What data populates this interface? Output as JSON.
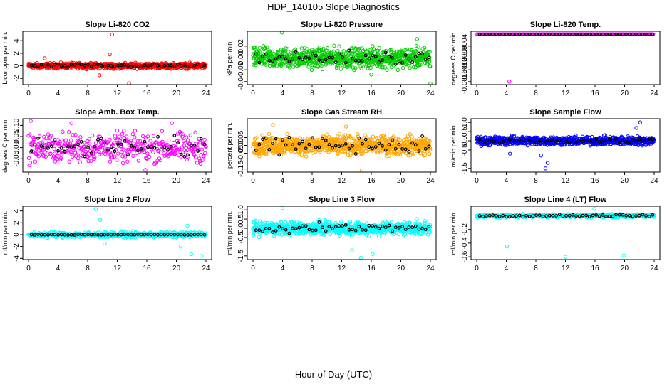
{
  "figure": {
    "title": "HDP_140105  Slope Diagnostics",
    "xlabel": "Hour of Day (UTC)"
  },
  "chart_data": [
    {
      "type": "scatter",
      "title": "Slope Li-820 CO2",
      "ylabel": "Licor ppm per min.",
      "color": "#ff0000",
      "xlim": [
        0,
        24
      ],
      "ylim": [
        -3,
        5.5
      ],
      "xticks": [
        0,
        4,
        8,
        12,
        16,
        20,
        24
      ],
      "yticks": [
        -2,
        0,
        2,
        4
      ],
      "ytick_labels": [
        "-2",
        "0",
        "2",
        "4"
      ],
      "spread": 0.35,
      "base_style": "dense",
      "outliers": [
        {
          "x": 2.2,
          "y": 1.2
        },
        {
          "x": 9.6,
          "y": -1.5
        },
        {
          "x": 11.0,
          "y": 1.8
        },
        {
          "x": 11.3,
          "y": 5.0
        },
        {
          "x": 13.6,
          "y": -2.8
        }
      ],
      "black_spread": 0.25
    },
    {
      "type": "scatter",
      "title": "Slope Li-820 Pressure",
      "ylabel": "kPa per min.",
      "color": "#00cc00",
      "xlim": [
        0,
        24
      ],
      "ylim": [
        -0.045,
        0.045
      ],
      "xticks": [
        0,
        4,
        8,
        12,
        16,
        20,
        24
      ],
      "yticks": [
        -0.04,
        -0.02,
        0.0,
        0.02
      ],
      "ytick_labels": [
        "-0.04",
        "-0.02",
        "0.00",
        "0.02"
      ],
      "spread": 0.014,
      "base_style": "dense",
      "outliers": [
        {
          "x": 3.9,
          "y": 0.043
        },
        {
          "x": 22.2,
          "y": 0.032
        },
        {
          "x": 16.0,
          "y": -0.028
        },
        {
          "x": 24.0,
          "y": -0.043
        }
      ],
      "black_spread": 0.01
    },
    {
      "type": "scatter",
      "title": "Slope Li-820 Temp.",
      "ylabel": "degrees C per min.",
      "color": "#ff00ff",
      "xlim": [
        0,
        24
      ],
      "ylim": [
        -0.0017,
        0.0001
      ],
      "xticks": [
        0,
        4,
        8,
        12,
        16,
        20,
        24
      ],
      "yticks": [
        -0.0016,
        -0.0012,
        -0.0008,
        -0.0004
      ],
      "ytick_labels": [
        "-0.0016",
        "-0.0012",
        "-0.0008",
        "-0.0004"
      ],
      "spread": 0,
      "base_style": "line",
      "line_y": 0.0,
      "outliers": [
        {
          "x": 4.4,
          "y": -0.0016
        }
      ],
      "black_spread": 0
    },
    {
      "type": "scatter",
      "title": "Slope Amb. Box Temp.",
      "ylabel": "degrees C per min.",
      "color": "#ff00ff",
      "xlim": [
        0,
        24
      ],
      "ylim": [
        -0.11,
        0.13
      ],
      "xticks": [
        0,
        4,
        8,
        12,
        16,
        20,
        24
      ],
      "yticks": [
        -0.05,
        0.0,
        0.05,
        0.1
      ],
      "ytick_labels": [
        "-0.05",
        "0.00",
        "0.05",
        "0.10"
      ],
      "spread": 0.055,
      "base_style": "sparse",
      "outliers": [
        {
          "x": 0.3,
          "y": 0.12
        },
        {
          "x": 5.8,
          "y": 0.11
        },
        {
          "x": 15.8,
          "y": -0.1
        },
        {
          "x": 19.4,
          "y": 0.11
        }
      ],
      "black_spread": 0.04
    },
    {
      "type": "scatter",
      "title": "Slope Gas Stream RH",
      "ylabel": "percent per min.",
      "color": "#ffa500",
      "xlim": [
        0,
        24
      ],
      "ylim": [
        -0.17,
        0.17
      ],
      "xticks": [
        0,
        4,
        8,
        12,
        16,
        20,
        24
      ],
      "yticks": [
        -0.15,
        -0.05,
        0.0,
        0.05
      ],
      "ytick_labels": [
        "-0.15",
        "-0.05",
        "0.00",
        "0.05"
      ],
      "spread": 0.05,
      "base_style": "dense",
      "outliers": [
        {
          "x": 2.7,
          "y": 0.13
        },
        {
          "x": 14.7,
          "y": -0.16
        },
        {
          "x": 12.6,
          "y": 0.12
        }
      ],
      "black_spread": 0.05
    },
    {
      "type": "scatter",
      "title": "Slope Sample Flow",
      "ylabel": "ml/min per min.",
      "color": "#0000ff",
      "xlim": [
        0,
        24
      ],
      "ylim": [
        -1.7,
        1.2
      ],
      "xticks": [
        0,
        4,
        8,
        12,
        16,
        20,
        24
      ],
      "yticks": [
        -1.5,
        -0.5,
        0.0,
        0.5,
        1.0
      ],
      "ytick_labels": [
        "-1.5",
        "-0.5",
        "0.0",
        "0.5",
        "1.0"
      ],
      "spread": 0.2,
      "base_style": "dense",
      "outliers": [
        {
          "x": 9.3,
          "y": -1.5
        },
        {
          "x": 9.6,
          "y": -1.2
        },
        {
          "x": 4.5,
          "y": -0.7
        },
        {
          "x": 22.1,
          "y": 1.0
        },
        {
          "x": 21.6,
          "y": 0.7
        },
        {
          "x": 8.7,
          "y": -0.8
        }
      ],
      "black_spread": 0.1
    },
    {
      "type": "scatter",
      "title": "Slope Line 2 Flow",
      "ylabel": "ml/min per min.",
      "color": "#00ffff",
      "xlim": [
        0,
        24
      ],
      "ylim": [
        -4.2,
        4.8
      ],
      "xticks": [
        0,
        4,
        8,
        12,
        16,
        20,
        24
      ],
      "yticks": [
        -4,
        -2,
        0,
        2,
        4
      ],
      "ytick_labels": [
        "-4",
        "-2",
        "0",
        "2",
        "4"
      ],
      "spread": 0.4,
      "base_style": "sparse",
      "outliers": [
        {
          "x": 9.1,
          "y": 4.3
        },
        {
          "x": 9.7,
          "y": 2.5
        },
        {
          "x": 10.3,
          "y": -1.5
        },
        {
          "x": 20.6,
          "y": -2.0
        },
        {
          "x": 22.0,
          "y": -3.3
        },
        {
          "x": 23.4,
          "y": -3.6
        },
        {
          "x": 21.5,
          "y": 1.5
        }
      ],
      "black_spread": 0.05
    },
    {
      "type": "scatter",
      "title": "Slope Line 3 Flow",
      "ylabel": "ml/min per min.",
      "color": "#00ffff",
      "xlim": [
        0,
        24
      ],
      "ylim": [
        -1.7,
        1.2
      ],
      "xticks": [
        0,
        4,
        8,
        12,
        16,
        20,
        24
      ],
      "yticks": [
        -1.5,
        -0.5,
        0.0,
        0.5,
        1.0
      ],
      "ytick_labels": [
        "-1.5",
        "-0.5",
        "0.0",
        "0.5",
        "1.0"
      ],
      "spread": 0.3,
      "base_style": "dense",
      "outliers": [
        {
          "x": 4.0,
          "y": 1.1
        },
        {
          "x": 13.4,
          "y": -1.2
        },
        {
          "x": 14.6,
          "y": -1.6
        },
        {
          "x": 16.2,
          "y": -1.4
        }
      ],
      "black_spread": 0.2
    },
    {
      "type": "scatter",
      "title": "Slope Line 4 (LT) Flow",
      "ylabel": "ml/min per min.",
      "color": "#00ffff",
      "xlim": [
        0,
        24
      ],
      "ylim": [
        -0.64,
        0.14
      ],
      "xticks": [
        0,
        4,
        8,
        12,
        16,
        20,
        24
      ],
      "yticks": [
        -0.6,
        -0.4,
        -0.2
      ],
      "ytick_labels": [
        "-0.6",
        "-0.4",
        "-0.2"
      ],
      "spread": 0.02,
      "base_style": "sparse",
      "outliers": [
        {
          "x": 4.1,
          "y": -0.45
        },
        {
          "x": 12.0,
          "y": -0.6
        },
        {
          "x": 19.9,
          "y": -0.58
        },
        {
          "x": 15.9,
          "y": 0.1
        }
      ],
      "black_spread": 0.015
    }
  ]
}
